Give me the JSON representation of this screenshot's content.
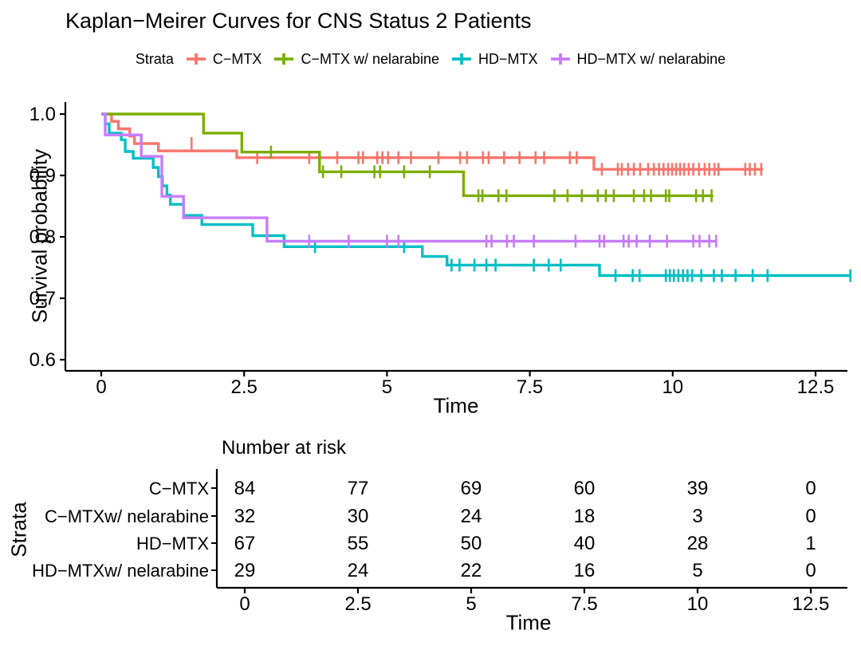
{
  "title": "Kaplan−Meirer Curves for CNS Status 2 Patients",
  "legend": {
    "label": "Strata"
  },
  "main_plot": {
    "ylabel": "Survival probability",
    "xlabel": "Time",
    "x_tick_labels": [
      "0",
      "2.5",
      "5",
      "7.5",
      "10",
      "12.5"
    ],
    "y_tick_labels": [
      "1.0",
      "0.9",
      "0.8",
      "0.7",
      "0.6"
    ]
  },
  "chart_data": {
    "type": "line",
    "subtype": "kaplan-meier-step",
    "title": "Kaplan−Meirer Curves for CNS Status 2 Patients",
    "xlabel": "Time",
    "ylabel": "Survival probability",
    "xlim": [
      0,
      13.2
    ],
    "ylim": [
      0.6,
      1.0
    ],
    "x_ticks": [
      0,
      2.5,
      5,
      7.5,
      10,
      12.5
    ],
    "y_ticks": [
      1.0,
      0.9,
      0.8,
      0.7,
      0.6
    ],
    "grid": false,
    "legend_position": "top",
    "series": [
      {
        "name": "C−MTX",
        "color": "#F8766D",
        "steps": [
          [
            0,
            1.0
          ],
          [
            0.18,
            0.988
          ],
          [
            0.3,
            0.976
          ],
          [
            0.5,
            0.964
          ],
          [
            0.58,
            0.952
          ],
          [
            1.0,
            0.94
          ],
          [
            2.37,
            0.929
          ],
          [
            8.62,
            0.91
          ]
        ],
        "end": 11.58,
        "censors": [
          [
            1.58,
            0.952
          ],
          [
            2.73,
            0.929
          ],
          [
            3.64,
            0.929
          ],
          [
            4.13,
            0.929
          ],
          [
            4.5,
            0.929
          ],
          [
            4.58,
            0.929
          ],
          [
            4.83,
            0.929
          ],
          [
            4.92,
            0.929
          ],
          [
            5.02,
            0.929
          ],
          [
            5.2,
            0.929
          ],
          [
            5.42,
            0.929
          ],
          [
            5.9,
            0.929
          ],
          [
            6.28,
            0.929
          ],
          [
            6.4,
            0.929
          ],
          [
            6.68,
            0.929
          ],
          [
            6.78,
            0.929
          ],
          [
            7.05,
            0.929
          ],
          [
            7.32,
            0.929
          ],
          [
            7.6,
            0.929
          ],
          [
            7.75,
            0.929
          ],
          [
            8.2,
            0.929
          ],
          [
            8.32,
            0.929
          ],
          [
            8.76,
            0.91
          ],
          [
            9.04,
            0.91
          ],
          [
            9.11,
            0.91
          ],
          [
            9.22,
            0.91
          ],
          [
            9.32,
            0.91
          ],
          [
            9.43,
            0.91
          ],
          [
            9.57,
            0.91
          ],
          [
            9.67,
            0.91
          ],
          [
            9.76,
            0.91
          ],
          [
            9.84,
            0.91
          ],
          [
            9.92,
            0.91
          ],
          [
            9.99,
            0.91
          ],
          [
            10.06,
            0.91
          ],
          [
            10.13,
            0.91
          ],
          [
            10.2,
            0.91
          ],
          [
            10.28,
            0.91
          ],
          [
            10.36,
            0.91
          ],
          [
            10.46,
            0.91
          ],
          [
            10.56,
            0.91
          ],
          [
            10.64,
            0.91
          ],
          [
            10.73,
            0.91
          ],
          [
            10.8,
            0.91
          ],
          [
            11.27,
            0.91
          ],
          [
            11.35,
            0.91
          ],
          [
            11.44,
            0.91
          ],
          [
            11.55,
            0.91
          ]
        ]
      },
      {
        "name": "C−MTX w/ nelarabine",
        "color": "#7CAE00",
        "steps": [
          [
            0,
            1.0
          ],
          [
            1.79,
            0.969
          ],
          [
            2.46,
            0.938
          ],
          [
            3.82,
            0.906
          ],
          [
            6.34,
            0.867
          ]
        ],
        "end": 10.71,
        "censors": [
          [
            2.97,
            0.938
          ],
          [
            3.88,
            0.906
          ],
          [
            4.2,
            0.906
          ],
          [
            4.78,
            0.906
          ],
          [
            4.88,
            0.906
          ],
          [
            5.3,
            0.906
          ],
          [
            5.75,
            0.906
          ],
          [
            6.6,
            0.867
          ],
          [
            6.67,
            0.867
          ],
          [
            6.95,
            0.867
          ],
          [
            7.09,
            0.867
          ],
          [
            7.93,
            0.867
          ],
          [
            8.16,
            0.867
          ],
          [
            8.41,
            0.867
          ],
          [
            8.69,
            0.867
          ],
          [
            8.83,
            0.867
          ],
          [
            8.97,
            0.867
          ],
          [
            9.32,
            0.867
          ],
          [
            9.5,
            0.867
          ],
          [
            9.62,
            0.867
          ],
          [
            9.88,
            0.867
          ],
          [
            9.94,
            0.867
          ],
          [
            10.41,
            0.867
          ],
          [
            10.53,
            0.867
          ],
          [
            10.68,
            0.867
          ]
        ]
      },
      {
        "name": "HD−MTX",
        "color": "#00BFC4",
        "steps": [
          [
            0,
            1.0
          ],
          [
            0.07,
            0.984
          ],
          [
            0.14,
            0.969
          ],
          [
            0.35,
            0.958
          ],
          [
            0.42,
            0.939
          ],
          [
            0.56,
            0.928
          ],
          [
            0.91,
            0.913
          ],
          [
            1.0,
            0.898
          ],
          [
            1.07,
            0.883
          ],
          [
            1.15,
            0.868
          ],
          [
            1.21,
            0.853
          ],
          [
            1.44,
            0.835
          ],
          [
            1.76,
            0.82
          ],
          [
            2.65,
            0.802
          ],
          [
            3.2,
            0.784
          ],
          [
            5.62,
            0.768
          ],
          [
            6.05,
            0.754
          ],
          [
            8.72,
            0.737
          ]
        ],
        "end": 13.11,
        "censors": [
          [
            3.74,
            0.784
          ],
          [
            5.3,
            0.784
          ],
          [
            6.13,
            0.754
          ],
          [
            6.27,
            0.754
          ],
          [
            6.53,
            0.754
          ],
          [
            6.74,
            0.754
          ],
          [
            6.9,
            0.754
          ],
          [
            7.57,
            0.754
          ],
          [
            7.83,
            0.754
          ],
          [
            8.04,
            0.754
          ],
          [
            9.0,
            0.737
          ],
          [
            9.3,
            0.737
          ],
          [
            9.42,
            0.737
          ],
          [
            9.88,
            0.737
          ],
          [
            9.95,
            0.737
          ],
          [
            10.02,
            0.737
          ],
          [
            10.1,
            0.737
          ],
          [
            10.18,
            0.737
          ],
          [
            10.26,
            0.737
          ],
          [
            10.34,
            0.737
          ],
          [
            10.5,
            0.737
          ],
          [
            10.72,
            0.737
          ],
          [
            10.86,
            0.737
          ],
          [
            11.1,
            0.737
          ],
          [
            11.4,
            0.737
          ],
          [
            11.66,
            0.737
          ],
          [
            13.11,
            0.737
          ]
        ]
      },
      {
        "name": "HD−MTX w/ nelarabine",
        "color": "#C77CFF",
        "steps": [
          [
            0,
            1.0
          ],
          [
            0.07,
            0.966
          ],
          [
            0.7,
            0.931
          ],
          [
            1.06,
            0.866
          ],
          [
            1.44,
            0.831
          ],
          [
            2.9,
            0.793
          ]
        ],
        "end": 10.78,
        "censors": [
          [
            3.64,
            0.793
          ],
          [
            4.33,
            0.793
          ],
          [
            5.0,
            0.793
          ],
          [
            5.2,
            0.793
          ],
          [
            6.74,
            0.793
          ],
          [
            6.83,
            0.793
          ],
          [
            7.1,
            0.793
          ],
          [
            7.22,
            0.793
          ],
          [
            7.57,
            0.793
          ],
          [
            8.3,
            0.793
          ],
          [
            8.72,
            0.793
          ],
          [
            8.8,
            0.793
          ],
          [
            9.14,
            0.793
          ],
          [
            9.23,
            0.793
          ],
          [
            9.37,
            0.793
          ],
          [
            9.6,
            0.793
          ],
          [
            9.9,
            0.793
          ],
          [
            10.36,
            0.793
          ],
          [
            10.47,
            0.793
          ],
          [
            10.64,
            0.793
          ],
          [
            10.76,
            0.793
          ]
        ]
      }
    ],
    "risk_table": {
      "title": "Number at risk",
      "ylabel": "Strata",
      "xlabel": "Time",
      "times": [
        0,
        2.5,
        5,
        7.5,
        10,
        12.5
      ],
      "tick_labels": [
        "0",
        "2.5",
        "5",
        "7.5",
        "10",
        "12.5"
      ],
      "rows": [
        {
          "label": "C−MTX",
          "color": "#F8766D",
          "values": [
            84,
            77,
            69,
            60,
            39,
            0
          ]
        },
        {
          "label": "C−MTXw/ nelarabine",
          "color": "#7CAE00",
          "values": [
            32,
            30,
            24,
            18,
            3,
            0
          ]
        },
        {
          "label": "HD−MTX",
          "color": "#00BFC4",
          "values": [
            67,
            55,
            50,
            40,
            28,
            1
          ]
        },
        {
          "label": "HD−MTXw/ nelarabine",
          "color": "#C77CFF",
          "values": [
            29,
            24,
            22,
            16,
            5,
            0
          ]
        }
      ]
    }
  }
}
